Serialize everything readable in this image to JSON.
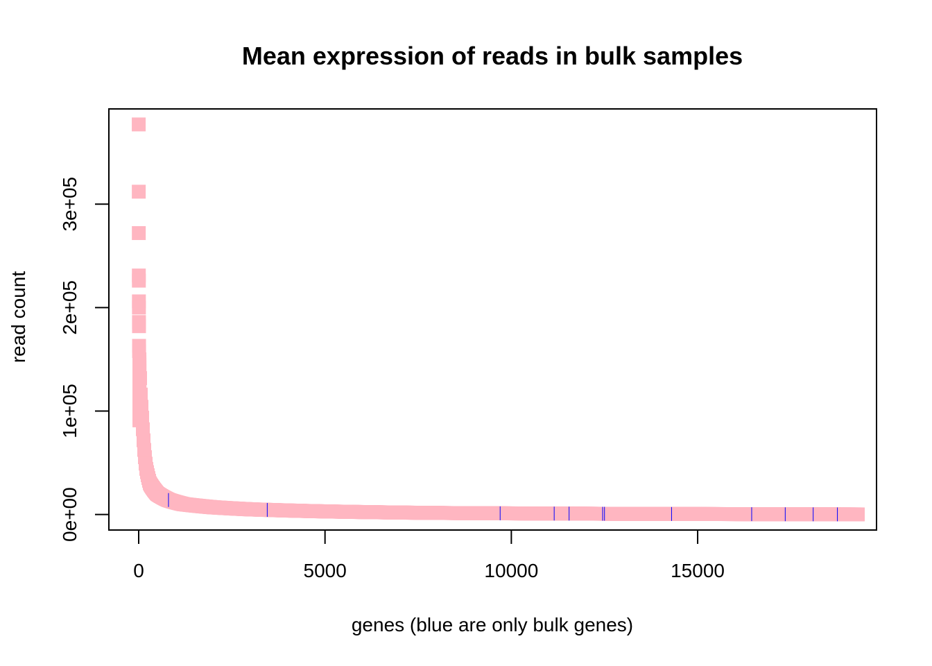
{
  "chart_data": {
    "type": "scatter",
    "title": "Mean expression of reads in bulk samples",
    "xlabel": "genes (blue are only bulk genes)",
    "ylabel": "read count",
    "xlim": [
      -800,
      19800
    ],
    "ylim": [
      -15000,
      392000
    ],
    "x_ticks": [
      0,
      5000,
      10000,
      15000
    ],
    "x_tick_labels": [
      "0",
      "5000",
      "10000",
      "15000"
    ],
    "y_ticks": [
      0,
      100000,
      200000,
      300000
    ],
    "y_tick_labels": [
      "0e+00",
      "1e+05",
      "2e+05",
      "3e+05"
    ],
    "grid": false,
    "legend": "none",
    "n_genes": 19300,
    "colors": {
      "all_genes": "#FFB6C1",
      "bulk_only_genes": "#0000FF"
    },
    "top_values": [
      {
        "x": 1,
        "y": 377000
      },
      {
        "x": 2,
        "y": 312000
      },
      {
        "x": 3,
        "y": 272000
      },
      {
        "x": 4,
        "y": 231000
      },
      {
        "x": 5,
        "y": 226000
      },
      {
        "x": 6,
        "y": 206000
      },
      {
        "x": 7,
        "y": 200000
      },
      {
        "x": 8,
        "y": 186000
      },
      {
        "x": 9,
        "y": 182000
      },
      {
        "x": 10,
        "y": 163000
      },
      {
        "x": 11,
        "y": 158000
      }
    ],
    "curve_points": [
      {
        "x": 20,
        "y": 150000
      },
      {
        "x": 50,
        "y": 120000
      },
      {
        "x": 100,
        "y": 90000
      },
      {
        "x": 150,
        "y": 62000
      },
      {
        "x": 200,
        "y": 45000
      },
      {
        "x": 300,
        "y": 30000
      },
      {
        "x": 500,
        "y": 20000
      },
      {
        "x": 800,
        "y": 14000
      },
      {
        "x": 1200,
        "y": 10000
      },
      {
        "x": 2000,
        "y": 7000
      },
      {
        "x": 3000,
        "y": 5000
      },
      {
        "x": 5000,
        "y": 3000
      },
      {
        "x": 8000,
        "y": 1500
      },
      {
        "x": 12000,
        "y": 800
      },
      {
        "x": 16000,
        "y": 400
      },
      {
        "x": 19300,
        "y": 100
      }
    ],
    "bulk_only_x": [
      800,
      3450,
      9700,
      11150,
      11550,
      12450,
      12500,
      14300,
      16450,
      17350,
      18100,
      18750
    ]
  }
}
